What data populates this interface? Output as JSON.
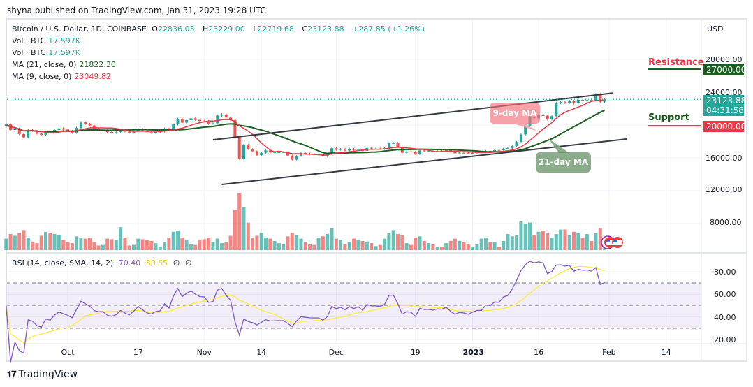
{
  "publisher_line": "shyna published on TradingView.com, Jan 31, 2023 19:28 UTC",
  "header": {
    "symbol": "Bitcoin / U.S. Dollar, 1D, COINBASE",
    "o_label": "O",
    "open": "22836.03",
    "h_label": "H",
    "high": "23229.00",
    "l_label": "L",
    "low": "22719.68",
    "c_label": "C",
    "close": "23123.88",
    "change": "+287.85 (+1.26%)"
  },
  "indicators": [
    {
      "label": "Vol · BTC",
      "value": "17.597K",
      "color": "#26a69a"
    },
    {
      "label": "Vol · BTC",
      "value": "17.597K",
      "color": "#26a69a"
    },
    {
      "label": "MA (21, close, 0)",
      "value": "21822.30",
      "color": "#1b5e20"
    },
    {
      "label": "MA (9, close, 0)",
      "value": "23049.82",
      "color": "#f23645"
    }
  ],
  "rsi_legend": {
    "label": "RSI (14, close, SMA, 14, 2)",
    "rsi": "70.40",
    "sma": "80.55",
    "extra1": "∅",
    "extra2": "∅"
  },
  "currency": "USD",
  "price_axis": [
    "28000.00",
    "24000.00",
    "16000.00",
    "12000.00",
    "8000.00"
  ],
  "rsi_axis": [
    "80.00",
    "60.00",
    "40.00",
    "20.00"
  ],
  "time_axis": [
    "Oct",
    "17",
    "Nov",
    "14",
    "Dec",
    "19",
    "2023",
    "16",
    "Feb",
    "14"
  ],
  "price_tags": {
    "resistance": "27000.00",
    "last": "23123.88",
    "countdown": "04:31:58",
    "support": "20000.00"
  },
  "annotations": {
    "resistance_label": "Resistance",
    "support_label": "Support",
    "ma9_callout": "9-day MA",
    "ma21_callout": "21-day MA"
  },
  "colors": {
    "up": "#26a69a",
    "down": "#ef5350",
    "ma9": "#f23645",
    "ma21": "#1b5e20",
    "rsi": "#7e57c2",
    "rsi_sma": "#ffeb3b"
  },
  "logo_text": "TradingView",
  "chart_data": {
    "type": "candlestick",
    "start_date": "2022-09-17",
    "end_date": "2023-01-31",
    "price_range": [
      6000,
      30000
    ],
    "rsi_range": [
      10,
      95
    ],
    "rsi_bands": [
      30,
      50,
      70
    ],
    "close": [
      20100,
      19400,
      19550,
      18900,
      18500,
      19400,
      19300,
      18950,
      18800,
      19200,
      19100,
      19400,
      19600,
      19450,
      19300,
      19050,
      19650,
      20350,
      20150,
      19950,
      19550,
      19450,
      19450,
      19150,
      19050,
      19150,
      19400,
      19200,
      19070,
      19270,
      19550,
      19330,
      19130,
      19050,
      19170,
      19210,
      19570,
      19330,
      20090,
      20770,
      20290,
      20600,
      20820,
      20630,
      20490,
      20480,
      20160,
      20210,
      21150,
      21300,
      20910,
      20600,
      18540,
      15880,
      17600,
      17070,
      16810,
      16330,
      16620,
      16900,
      16660,
      16690,
      16700,
      16700,
      16280,
      15780,
      16230,
      16600,
      16520,
      16460,
      16440,
      16440,
      16210,
      16440,
      17170,
      16980,
      17090,
      16890,
      17110,
      16970,
      17090,
      16840,
      17220,
      17130,
      17130,
      17090,
      17210,
      17790,
      17810,
      17360,
      16630,
      16780,
      16740,
      16440,
      16900,
      16820,
      16830,
      16780,
      16840,
      16830,
      16920,
      16710,
      16550,
      16630,
      16600,
      16540,
      16610,
      16670,
      16670,
      16850,
      16830,
      16950,
      16940,
      17120,
      17180,
      17440,
      17940,
      18850,
      19930,
      20950,
      20880,
      21180,
      21140,
      20680,
      21080,
      22670,
      22780,
      22710,
      22920,
      22630,
      23060,
      23010,
      23080,
      23030,
      23740,
      22836.03,
      23123.88
    ],
    "volume_k": [
      20,
      28,
      25,
      30,
      35,
      22,
      15,
      12,
      25,
      32,
      30,
      28,
      27,
      18,
      14,
      12,
      24,
      22,
      20,
      21,
      14,
      8,
      9,
      20,
      19,
      18,
      40,
      22,
      8,
      9,
      20,
      19,
      17,
      16,
      12,
      6,
      14,
      22,
      32,
      34,
      22,
      18,
      10,
      9,
      18,
      19,
      22,
      14,
      20,
      12,
      14,
      25,
      70,
      100,
      75,
      48,
      22,
      25,
      30,
      22,
      20,
      16,
      12,
      10,
      24,
      30,
      26,
      20,
      14,
      10,
      9,
      22,
      24,
      28,
      38,
      20,
      18,
      10,
      14,
      20,
      18,
      16,
      15,
      12,
      7,
      9,
      20,
      30,
      35,
      28,
      26,
      12,
      9,
      22,
      24,
      16,
      12,
      10,
      6,
      6,
      12,
      16,
      20,
      16,
      14,
      10,
      6,
      10,
      20,
      22,
      14,
      14,
      6,
      16,
      28,
      24,
      26,
      50,
      46,
      48,
      26,
      32,
      34,
      30,
      22,
      28,
      36,
      36,
      26,
      32,
      30,
      22,
      28,
      16,
      30,
      38,
      17.597
    ],
    "ma_periods": [
      9,
      21
    ],
    "trendlines": [
      {
        "from": [
          "2022-11-03",
          18200
        ],
        "to": [
          "2023-02-02",
          23900
        ]
      },
      {
        "from": [
          "2022-11-05",
          12770
        ],
        "to": [
          "2023-02-05",
          18300
        ]
      }
    ],
    "horizontal_levels": [
      {
        "price": 27000,
        "label": "Resistance"
      },
      {
        "price": 20000,
        "label": "Support"
      }
    ],
    "rsi_last": 70.4,
    "rsi_sma_last": 80.55
  }
}
